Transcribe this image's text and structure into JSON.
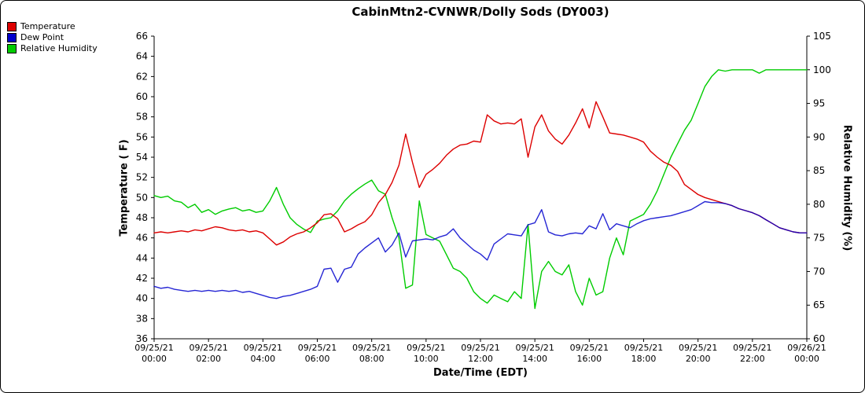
{
  "window": {
    "title": "CabinMtn2-CVNWR/Dolly Sods (DY003)"
  },
  "legend": {
    "items": [
      {
        "label": "Temperature",
        "color": "#dd0000"
      },
      {
        "label": "Dew Point",
        "color": "#0000cc"
      },
      {
        "label": "Relative Humidity",
        "color": "#00cc00"
      }
    ]
  },
  "axes": {
    "left_label": "Temperature ( F)",
    "right_label": "Relative Humidity (%)",
    "x_label": "Date/Time (EDT)",
    "left_ticks": [
      66,
      64,
      62,
      60,
      58,
      56,
      54,
      52,
      50,
      48,
      46,
      44,
      42,
      40,
      38,
      36
    ],
    "right_ticks": [
      105,
      100,
      95,
      90,
      85,
      80,
      75,
      70,
      65,
      60
    ],
    "x_ticks": [
      {
        "date": "09/25/21",
        "time": "00:00"
      },
      {
        "date": "09/25/21",
        "time": "02:00"
      },
      {
        "date": "09/25/21",
        "time": "04:00"
      },
      {
        "date": "09/25/21",
        "time": "06:00"
      },
      {
        "date": "09/25/21",
        "time": "08:00"
      },
      {
        "date": "09/25/21",
        "time": "10:00"
      },
      {
        "date": "09/25/21",
        "time": "12:00"
      },
      {
        "date": "09/25/21",
        "time": "14:00"
      },
      {
        "date": "09/25/21",
        "time": "16:00"
      },
      {
        "date": "09/25/21",
        "time": "18:00"
      },
      {
        "date": "09/25/21",
        "time": "20:00"
      },
      {
        "date": "09/25/21",
        "time": "22:00"
      },
      {
        "date": "09/26/21",
        "time": "00:00"
      }
    ]
  },
  "chart_data": {
    "type": "line",
    "title": "CabinMtn2-CVNWR/Dolly Sods (DY003)",
    "xlabel": "Date/Time (EDT)",
    "ylabel_left": "Temperature ( F)",
    "ylabel_right": "Relative Humidity (%)",
    "left_axis_range": [
      36,
      66
    ],
    "right_axis_range": [
      60,
      105
    ],
    "x_range_hours": [
      0,
      24
    ],
    "grid": false,
    "legend_position": "top-left",
    "x_hours": [
      0,
      0.25,
      0.5,
      0.75,
      1,
      1.25,
      1.5,
      1.75,
      2,
      2.25,
      2.5,
      2.75,
      3,
      3.25,
      3.5,
      3.75,
      4,
      4.25,
      4.5,
      4.75,
      5,
      5.25,
      5.5,
      5.75,
      6,
      6.25,
      6.5,
      6.75,
      7,
      7.25,
      7.5,
      7.75,
      8,
      8.25,
      8.5,
      8.75,
      9,
      9.25,
      9.5,
      9.75,
      10,
      10.25,
      10.5,
      10.75,
      11,
      11.25,
      11.5,
      11.75,
      12,
      12.25,
      12.5,
      12.75,
      13,
      13.25,
      13.5,
      13.75,
      14,
      14.25,
      14.5,
      14.75,
      15,
      15.25,
      15.5,
      15.75,
      16,
      16.25,
      16.5,
      16.75,
      17,
      17.25,
      17.5,
      17.75,
      18,
      18.25,
      18.5,
      18.75,
      19,
      19.25,
      19.5,
      19.75,
      20,
      20.25,
      20.5,
      20.75,
      21,
      21.25,
      21.5,
      21.75,
      22,
      22.25,
      22.5,
      22.75,
      23,
      23.25,
      23.5,
      23.75,
      24
    ],
    "series": [
      {
        "name": "Temperature",
        "axis": "left",
        "color": "#dd0000",
        "values": [
          46.5,
          46.6,
          46.5,
          46.6,
          46.7,
          46.6,
          46.8,
          46.7,
          46.9,
          47.1,
          47.0,
          46.8,
          46.7,
          46.8,
          46.6,
          46.7,
          46.5,
          45.9,
          45.3,
          45.6,
          46.1,
          46.4,
          46.6,
          47.0,
          47.5,
          48.3,
          48.4,
          47.9,
          46.6,
          46.9,
          47.3,
          47.6,
          48.3,
          49.5,
          50.3,
          51.5,
          53.2,
          56.3,
          53.5,
          51.0,
          52.3,
          52.8,
          53.4,
          54.2,
          54.8,
          55.2,
          55.3,
          55.6,
          55.5,
          58.2,
          57.6,
          57.3,
          57.4,
          57.3,
          57.8,
          54.0,
          57.0,
          58.2,
          56.6,
          55.8,
          55.3,
          56.2,
          57.4,
          58.8,
          56.9,
          59.5,
          58.0,
          56.4,
          56.3,
          56.2,
          56.0,
          55.8,
          55.5,
          54.6,
          54.0,
          53.5,
          53.2,
          52.6,
          51.3,
          50.8,
          50.3,
          50.0,
          49.8,
          49.6,
          49.4,
          49.2,
          48.9,
          48.7,
          48.5,
          48.2,
          47.8,
          47.4,
          47.0,
          46.8,
          46.6,
          46.5,
          46.5
        ]
      },
      {
        "name": "Dew Point",
        "axis": "left",
        "color": "#0000cc",
        "values": [
          41.2,
          41.0,
          41.1,
          40.9,
          40.8,
          40.7,
          40.8,
          40.7,
          40.8,
          40.7,
          40.8,
          40.7,
          40.8,
          40.6,
          40.7,
          40.5,
          40.3,
          40.1,
          40.0,
          40.2,
          40.3,
          40.5,
          40.7,
          40.9,
          41.2,
          42.9,
          43.0,
          41.6,
          42.9,
          43.1,
          44.4,
          45.0,
          45.5,
          46.0,
          44.6,
          45.3,
          46.5,
          44.1,
          45.7,
          45.8,
          45.9,
          45.8,
          46.1,
          46.3,
          46.9,
          46.0,
          45.4,
          44.8,
          44.4,
          43.8,
          45.4,
          45.9,
          46.4,
          46.3,
          46.2,
          47.3,
          47.5,
          48.8,
          46.6,
          46.3,
          46.2,
          46.4,
          46.5,
          46.4,
          47.2,
          46.9,
          48.4,
          46.8,
          47.4,
          47.2,
          47.0,
          47.4,
          47.7,
          47.9,
          48.0,
          48.1,
          48.2,
          48.4,
          48.6,
          48.8,
          49.2,
          49.6,
          49.5,
          49.5,
          49.4,
          49.2,
          48.9,
          48.7,
          48.5,
          48.2,
          47.8,
          47.4,
          47.0,
          46.8,
          46.6,
          46.5,
          46.5
        ]
      },
      {
        "name": "Relative Humidity",
        "axis": "right",
        "color": "#00cc00",
        "values": [
          81.3,
          81.0,
          81.2,
          80.5,
          80.3,
          79.5,
          80.0,
          78.8,
          79.2,
          78.5,
          79.0,
          79.3,
          79.5,
          79.0,
          79.2,
          78.8,
          79.0,
          80.5,
          82.5,
          80.0,
          78.0,
          77.0,
          76.3,
          75.8,
          77.5,
          77.8,
          78.0,
          79.0,
          80.5,
          81.5,
          82.3,
          83.0,
          83.6,
          82.0,
          81.5,
          78.0,
          75.0,
          67.5,
          68.0,
          80.5,
          75.5,
          75.0,
          74.5,
          72.5,
          70.5,
          70.0,
          69.0,
          67.0,
          66.0,
          65.3,
          66.5,
          66.0,
          65.5,
          67.0,
          66.0,
          77.0,
          64.5,
          70.0,
          71.5,
          70.0,
          69.5,
          71.0,
          67.0,
          65.0,
          69.0,
          66.5,
          67.0,
          72.0,
          75.0,
          72.5,
          77.5,
          78.0,
          78.5,
          80.0,
          82.0,
          84.5,
          87.0,
          89.0,
          91.0,
          92.5,
          95.0,
          97.5,
          99.0,
          100.0,
          99.8,
          100.0,
          100.0,
          100.0,
          100.0,
          99.5,
          100.0,
          100.0,
          100.0,
          100.0,
          100.0,
          100.0,
          100.0
        ]
      }
    ]
  }
}
